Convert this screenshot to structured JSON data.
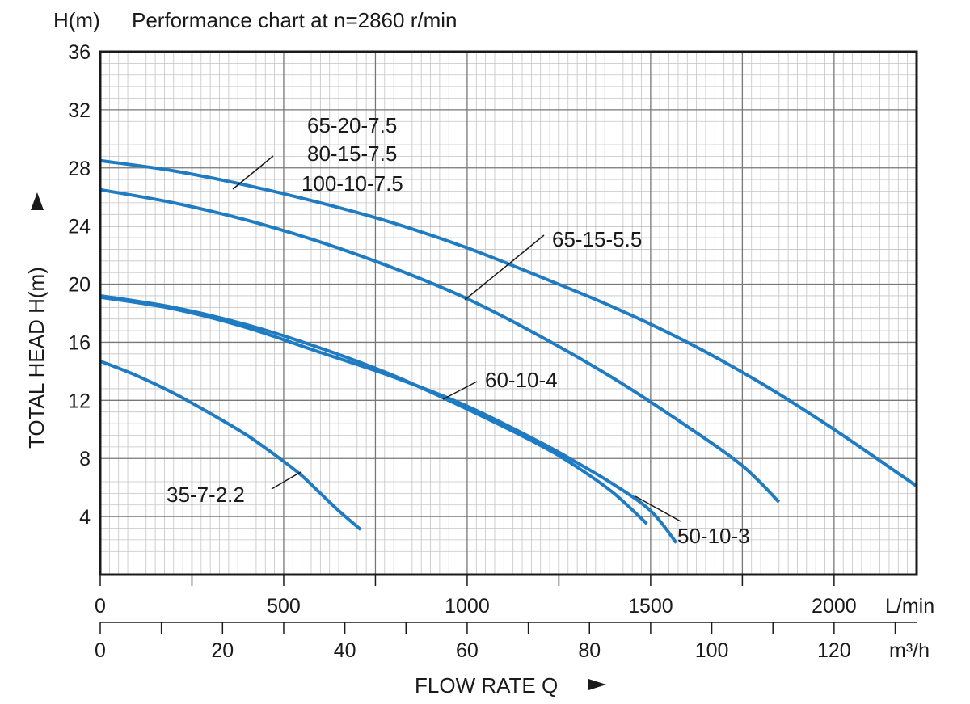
{
  "chart_data": {
    "type": "line",
    "title": "Performance chart at n=2860 r/min",
    "ylabel_top": "H(m)",
    "ylabel": "TOTAL HEAD H(m)",
    "xlabel": "FLOW RATE Q",
    "x_unit_primary": "L/min",
    "x_unit_secondary": "m³/h",
    "ylim": [
      0,
      36
    ],
    "xlim_lmin": [
      0,
      2225
    ],
    "xlim_m3h": [
      0,
      133.5
    ],
    "y_ticks": [
      "4",
      "8",
      "12",
      "16",
      "20",
      "24",
      "28",
      "32",
      "36"
    ],
    "x_ticks_lmin": [
      "0",
      "500",
      "1000",
      "1500",
      "2000"
    ],
    "x_ticks_m3h": [
      "0",
      "20",
      "40",
      "60",
      "80",
      "100",
      "120"
    ],
    "grid": true,
    "line_color": "#1f7bc2",
    "series": [
      {
        "name": "35-7-2.2",
        "x": [
          0,
          100,
          200,
          300,
          400,
          500,
          550,
          600,
          650,
          710
        ],
        "y": [
          14.7,
          13.7,
          12.5,
          11.1,
          9.6,
          7.8,
          6.8,
          5.6,
          4.4,
          3.1
        ]
      },
      {
        "name": "60-10-4",
        "x": [
          0,
          200,
          400,
          600,
          800,
          1000,
          1200,
          1300,
          1400,
          1490
        ],
        "y": [
          19.2,
          18.4,
          17.2,
          15.6,
          13.7,
          11.4,
          8.9,
          7.4,
          5.6,
          3.5
        ]
      },
      {
        "name": "50-10-3",
        "x": [
          0,
          200,
          400,
          600,
          800,
          1000,
          1200,
          1300,
          1400,
          1500,
          1570
        ],
        "y": [
          19.1,
          18.3,
          17.0,
          15.3,
          13.6,
          11.6,
          9.1,
          7.7,
          6.2,
          4.4,
          2.2
        ]
      },
      {
        "name": "65-15-5.5",
        "x": [
          0,
          200,
          400,
          600,
          800,
          1000,
          1200,
          1400,
          1600,
          1750,
          1850
        ],
        "y": [
          26.5,
          25.6,
          24.4,
          22.9,
          21.1,
          19.0,
          16.4,
          13.5,
          10.2,
          7.5,
          5.0
        ]
      },
      {
        "name": "65-20-7.5 / 80-15-7.5 / 100-10-7.5",
        "x": [
          0,
          200,
          400,
          600,
          800,
          1000,
          1200,
          1400,
          1600,
          1800,
          2000,
          2225
        ],
        "y": [
          28.5,
          27.8,
          26.8,
          25.6,
          24.2,
          22.5,
          20.5,
          18.4,
          16.0,
          13.2,
          10.0,
          6.1
        ]
      }
    ],
    "annotations": {
      "label_7_5_a": "65-20-7.5",
      "label_7_5_b": "80-15-7.5",
      "label_7_5_c": "100-10-7.5",
      "label_5_5": "65-15-5.5",
      "label_4": "60-10-4",
      "label_3": "50-10-3",
      "label_2_2": "35-7-2.2"
    }
  }
}
